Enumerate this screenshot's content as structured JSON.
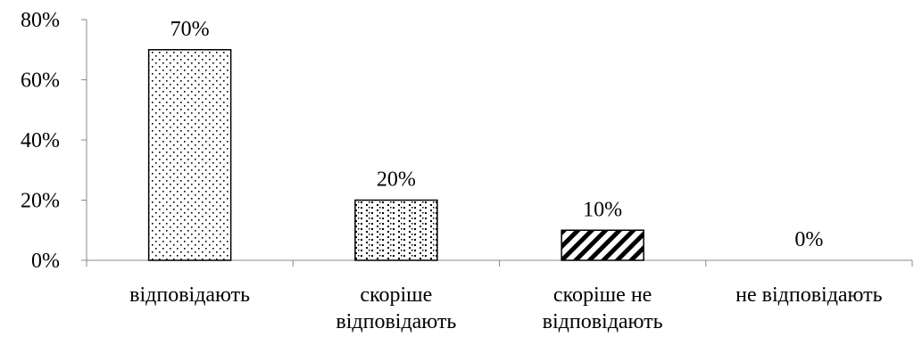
{
  "chart_data": {
    "type": "bar",
    "categories": [
      [
        "відповідають"
      ],
      [
        "скоріше",
        "відповідають"
      ],
      [
        "скоріше не",
        "відповідають"
      ],
      [
        "не відповідають"
      ]
    ],
    "values": [
      70,
      20,
      10,
      0
    ],
    "data_labels": [
      "70%",
      "20%",
      "10%",
      "0%"
    ],
    "ylim": [
      0,
      80
    ],
    "yticks": [
      0,
      20,
      40,
      60,
      80
    ],
    "ytick_labels": [
      "0%",
      "20%",
      "40%",
      "60%",
      "80%"
    ],
    "grid": false,
    "bar_patterns": [
      "fine-dots",
      "diamond-dots",
      "diagonal-stripes",
      "none"
    ],
    "bar_outline_color": "#000000",
    "title": "",
    "xlabel": "",
    "ylabel": ""
  }
}
